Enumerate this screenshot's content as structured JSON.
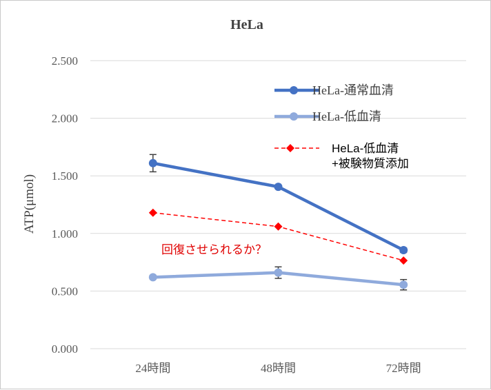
{
  "chart_data": {
    "type": "line",
    "title": "HeLa",
    "xlabel": "",
    "ylabel": "ATP(μmol)",
    "categories": [
      "24時間",
      "48時間",
      "72時間"
    ],
    "ylim": [
      0,
      2.5
    ],
    "yticks": [
      "0.000",
      "0.500",
      "1.000",
      "1.500",
      "2.000",
      "2.500"
    ],
    "ytick_values": [
      0,
      0.5,
      1.0,
      1.5,
      2.0,
      2.5
    ],
    "grid": "horizontal",
    "legend_position": "top-right",
    "series": [
      {
        "name": "HeLa-通常血清",
        "values": [
          1.61,
          1.405,
          0.855
        ],
        "error": [
          0.075,
          0.01,
          0.02
        ],
        "color": "#4472c4",
        "style": "solid-thick",
        "marker": "circle"
      },
      {
        "name": "HeLa-低血清",
        "values": [
          0.62,
          0.66,
          0.555
        ],
        "error": [
          0.015,
          0.05,
          0.045
        ],
        "color": "#8faadc",
        "style": "solid-thick",
        "marker": "circle"
      },
      {
        "name": "HeLa-低血清\n+被験物質添加",
        "name_lines": [
          "HeLa-低血清",
          "+被験物質添加"
        ],
        "values": [
          1.18,
          1.06,
          0.765
        ],
        "color": "#ff0000",
        "style": "dashed",
        "marker": "diamond"
      }
    ],
    "annotations": [
      {
        "text": "回復させられるか？",
        "color": "#e00000"
      }
    ]
  }
}
